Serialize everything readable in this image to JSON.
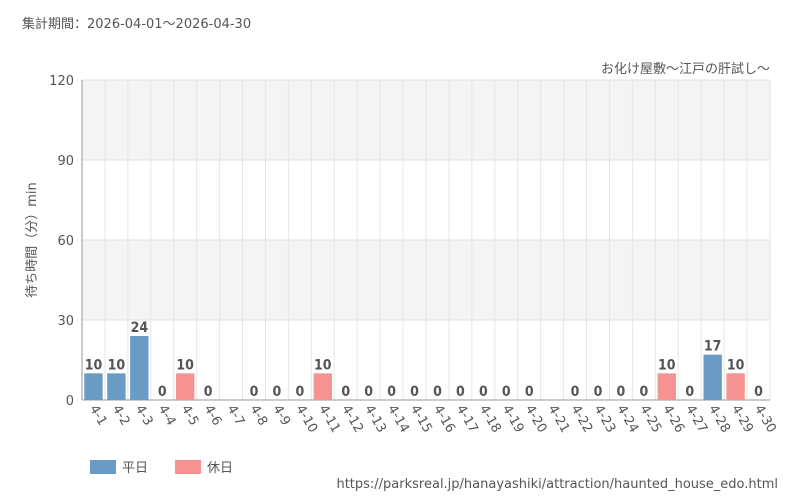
{
  "chart_data": {
    "type": "bar",
    "title": "集計期間：2026-04-01～2026-04-30",
    "subtitle": "お化け屋敷～江戸の肝試し～",
    "y_label": "待ち時間（分）min",
    "source": "https://parksreal.jp/hanayashiki/attraction/haunted_house_edo.html",
    "categories": [
      "4-1",
      "4-2",
      "4-3",
      "4-4",
      "4-5",
      "4-6",
      "4-7",
      "4-8",
      "4-9",
      "4-10",
      "4-11",
      "4-12",
      "4-13",
      "4-14",
      "4-15",
      "4-16",
      "4-17",
      "4-18",
      "4-19",
      "4-20",
      "4-21",
      "4-22",
      "4-23",
      "4-24",
      "4-25",
      "4-26",
      "4-27",
      "4-28",
      "4-29",
      "4-30"
    ],
    "series": [
      {
        "name": "平日",
        "color": "#6a9bc5",
        "values": [
          10,
          10,
          24,
          null,
          null,
          0,
          null,
          0,
          0,
          0,
          null,
          null,
          0,
          0,
          0,
          0,
          0,
          null,
          null,
          0,
          null,
          0,
          0,
          0,
          null,
          null,
          0,
          17,
          null,
          0
        ]
      },
      {
        "name": "休日",
        "color": "#f59393",
        "values": [
          null,
          null,
          null,
          0,
          10,
          null,
          null,
          null,
          null,
          null,
          10,
          0,
          null,
          null,
          null,
          null,
          null,
          0,
          0,
          null,
          null,
          null,
          null,
          null,
          0,
          10,
          null,
          null,
          10,
          null
        ]
      }
    ],
    "ylim": [
      0,
      120
    ],
    "yticks": [
      0,
      30,
      60,
      90,
      120
    ],
    "grid": true,
    "legend": "bottom-left"
  }
}
